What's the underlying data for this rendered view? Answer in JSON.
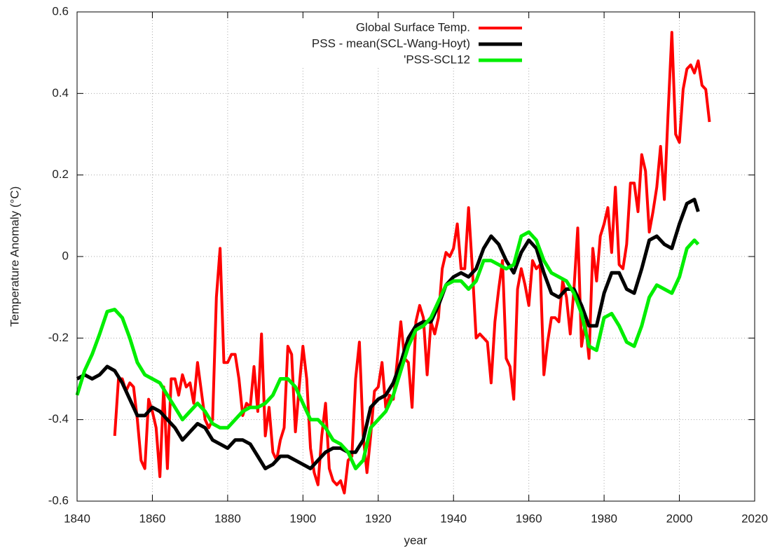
{
  "chart_data": {
    "type": "line",
    "x_label": "year",
    "y_label": "Temperature Anomaly (°C)",
    "xlim": [
      1840,
      2020
    ],
    "xticks": [
      1840,
      1860,
      1880,
      1900,
      1920,
      1940,
      1960,
      1980,
      2000,
      2020
    ],
    "ylim": [
      -0.6,
      0.6
    ],
    "yticks": [
      -0.6,
      -0.4,
      -0.2,
      0,
      0.2,
      0.4,
      0.6
    ],
    "grid": true,
    "legend": "top-right",
    "series": [
      {
        "name": "Global Surface Temp.",
        "color": "#ff0000",
        "width": 4,
        "x": [
          1850,
          1851,
          1852,
          1853,
          1854,
          1855,
          1856,
          1857,
          1858,
          1859,
          1860,
          1861,
          1862,
          1863,
          1864,
          1865,
          1866,
          1867,
          1868,
          1869,
          1870,
          1871,
          1872,
          1873,
          1874,
          1875,
          1876,
          1877,
          1878,
          1879,
          1880,
          1881,
          1882,
          1883,
          1884,
          1885,
          1886,
          1887,
          1888,
          1889,
          1890,
          1891,
          1892,
          1893,
          1894,
          1895,
          1896,
          1897,
          1898,
          1899,
          1900,
          1901,
          1902,
          1903,
          1904,
          1905,
          1906,
          1907,
          1908,
          1909,
          1910,
          1911,
          1912,
          1913,
          1914,
          1915,
          1916,
          1917,
          1918,
          1919,
          1920,
          1921,
          1922,
          1923,
          1924,
          1925,
          1926,
          1927,
          1928,
          1929,
          1930,
          1931,
          1932,
          1933,
          1934,
          1935,
          1936,
          1937,
          1938,
          1939,
          1940,
          1941,
          1942,
          1943,
          1944,
          1945,
          1946,
          1947,
          1948,
          1949,
          1950,
          1951,
          1952,
          1953,
          1954,
          1955,
          1956,
          1957,
          1958,
          1959,
          1960,
          1961,
          1962,
          1963,
          1964,
          1965,
          1966,
          1967,
          1968,
          1969,
          1970,
          1971,
          1972,
          1973,
          1974,
          1975,
          1976,
          1977,
          1978,
          1979,
          1980,
          1981,
          1982,
          1983,
          1984,
          1985,
          1986,
          1987,
          1988,
          1989,
          1990,
          1991,
          1992,
          1993,
          1994,
          1995,
          1996,
          1997,
          1998,
          1999,
          2000,
          2001,
          2002,
          2003,
          2004,
          2005,
          2006,
          2007,
          2008
        ],
        "values": [
          -0.44,
          -0.3,
          -0.3,
          -0.33,
          -0.31,
          -0.32,
          -0.4,
          -0.5,
          -0.52,
          -0.35,
          -0.38,
          -0.42,
          -0.54,
          -0.32,
          -0.52,
          -0.3,
          -0.3,
          -0.34,
          -0.29,
          -0.32,
          -0.31,
          -0.36,
          -0.26,
          -0.33,
          -0.4,
          -0.42,
          -0.4,
          -0.1,
          0.02,
          -0.26,
          -0.26,
          -0.24,
          -0.24,
          -0.3,
          -0.39,
          -0.36,
          -0.37,
          -0.27,
          -0.38,
          -0.19,
          -0.44,
          -0.37,
          -0.48,
          -0.5,
          -0.45,
          -0.42,
          -0.22,
          -0.24,
          -0.43,
          -0.32,
          -0.22,
          -0.3,
          -0.47,
          -0.53,
          -0.56,
          -0.44,
          -0.36,
          -0.52,
          -0.55,
          -0.56,
          -0.55,
          -0.58,
          -0.5,
          -0.49,
          -0.3,
          -0.21,
          -0.44,
          -0.53,
          -0.44,
          -0.33,
          -0.32,
          -0.26,
          -0.37,
          -0.34,
          -0.35,
          -0.26,
          -0.16,
          -0.25,
          -0.26,
          -0.37,
          -0.16,
          -0.12,
          -0.15,
          -0.29,
          -0.16,
          -0.19,
          -0.15,
          -0.03,
          0.01,
          0.0,
          0.02,
          0.08,
          -0.03,
          -0.03,
          0.12,
          -0.03,
          -0.2,
          -0.19,
          -0.2,
          -0.21,
          -0.31,
          -0.16,
          -0.08,
          -0.01,
          -0.25,
          -0.27,
          -0.35,
          -0.08,
          -0.03,
          -0.07,
          -0.12,
          -0.01,
          -0.03,
          -0.02,
          -0.29,
          -0.21,
          -0.15,
          -0.15,
          -0.16,
          -0.06,
          -0.1,
          -0.19,
          -0.08,
          0.07,
          -0.22,
          -0.16,
          -0.25,
          0.02,
          -0.06,
          0.05,
          0.08,
          0.12,
          0.01,
          0.17,
          -0.02,
          -0.03,
          0.03,
          0.18,
          0.18,
          0.11,
          0.25,
          0.21,
          0.06,
          0.11,
          0.17,
          0.27,
          0.14,
          0.35,
          0.55,
          0.3,
          0.28,
          0.41,
          0.46,
          0.47,
          0.45,
          0.48,
          0.42,
          0.41,
          0.33
        ]
      },
      {
        "name": "PSS - mean(SCL-Wang-Hoyt)",
        "color": "#000000",
        "width": 5,
        "x": [
          1840,
          1842,
          1844,
          1846,
          1848,
          1850,
          1852,
          1854,
          1856,
          1858,
          1860,
          1862,
          1864,
          1866,
          1868,
          1870,
          1872,
          1874,
          1876,
          1878,
          1880,
          1882,
          1884,
          1886,
          1888,
          1890,
          1892,
          1894,
          1896,
          1898,
          1900,
          1902,
          1904,
          1906,
          1908,
          1910,
          1912,
          1914,
          1916,
          1918,
          1920,
          1922,
          1924,
          1926,
          1928,
          1930,
          1932,
          1934,
          1936,
          1938,
          1940,
          1942,
          1944,
          1946,
          1948,
          1950,
          1952,
          1954,
          1956,
          1958,
          1960,
          1962,
          1964,
          1966,
          1968,
          1970,
          1972,
          1974,
          1976,
          1978,
          1980,
          1982,
          1984,
          1986,
          1988,
          1990,
          1992,
          1994,
          1996,
          1998,
          2000,
          2002,
          2004,
          2005
        ],
        "values": [
          -0.3,
          -0.29,
          -0.3,
          -0.29,
          -0.27,
          -0.28,
          -0.31,
          -0.35,
          -0.39,
          -0.39,
          -0.37,
          -0.38,
          -0.4,
          -0.42,
          -0.45,
          -0.43,
          -0.41,
          -0.42,
          -0.45,
          -0.46,
          -0.47,
          -0.45,
          -0.45,
          -0.46,
          -0.49,
          -0.52,
          -0.51,
          -0.49,
          -0.49,
          -0.5,
          -0.51,
          -0.52,
          -0.5,
          -0.48,
          -0.47,
          -0.47,
          -0.48,
          -0.48,
          -0.45,
          -0.37,
          -0.35,
          -0.34,
          -0.31,
          -0.26,
          -0.2,
          -0.17,
          -0.16,
          -0.16,
          -0.12,
          -0.07,
          -0.05,
          -0.04,
          -0.05,
          -0.03,
          0.02,
          0.05,
          0.03,
          -0.01,
          -0.04,
          0.01,
          0.04,
          0.02,
          -0.04,
          -0.09,
          -0.1,
          -0.08,
          -0.08,
          -0.12,
          -0.17,
          -0.17,
          -0.09,
          -0.04,
          -0.04,
          -0.08,
          -0.09,
          -0.03,
          0.04,
          0.05,
          0.03,
          0.02,
          0.08,
          0.13,
          0.14,
          0.11
        ]
      },
      {
        "name": "'PSS-SCL12",
        "color": "#00ee00",
        "width": 5,
        "x": [
          1840,
          1842,
          1844,
          1846,
          1848,
          1850,
          1852,
          1854,
          1856,
          1858,
          1860,
          1862,
          1864,
          1866,
          1868,
          1870,
          1872,
          1874,
          1876,
          1878,
          1880,
          1882,
          1884,
          1886,
          1888,
          1890,
          1892,
          1894,
          1896,
          1898,
          1900,
          1902,
          1904,
          1906,
          1908,
          1910,
          1912,
          1914,
          1916,
          1918,
          1920,
          1922,
          1924,
          1926,
          1928,
          1930,
          1932,
          1934,
          1936,
          1938,
          1940,
          1942,
          1944,
          1946,
          1948,
          1950,
          1952,
          1954,
          1956,
          1958,
          1960,
          1962,
          1964,
          1966,
          1968,
          1970,
          1972,
          1974,
          1976,
          1978,
          1980,
          1982,
          1984,
          1986,
          1988,
          1990,
          1992,
          1994,
          1996,
          1998,
          2000,
          2002,
          2004,
          2005
        ],
        "values": [
          -0.34,
          -0.28,
          -0.24,
          -0.19,
          -0.135,
          -0.13,
          -0.15,
          -0.2,
          -0.26,
          -0.29,
          -0.3,
          -0.31,
          -0.34,
          -0.37,
          -0.4,
          -0.38,
          -0.36,
          -0.38,
          -0.41,
          -0.42,
          -0.42,
          -0.4,
          -0.38,
          -0.37,
          -0.37,
          -0.36,
          -0.34,
          -0.3,
          -0.3,
          -0.32,
          -0.36,
          -0.4,
          -0.4,
          -0.42,
          -0.45,
          -0.46,
          -0.48,
          -0.52,
          -0.5,
          -0.42,
          -0.4,
          -0.38,
          -0.34,
          -0.28,
          -0.22,
          -0.18,
          -0.17,
          -0.15,
          -0.11,
          -0.07,
          -0.06,
          -0.06,
          -0.08,
          -0.06,
          -0.01,
          -0.01,
          -0.02,
          -0.03,
          -0.02,
          0.05,
          0.06,
          0.04,
          -0.01,
          -0.04,
          -0.05,
          -0.06,
          -0.09,
          -0.14,
          -0.22,
          -0.23,
          -0.15,
          -0.14,
          -0.17,
          -0.21,
          -0.22,
          -0.17,
          -0.1,
          -0.07,
          -0.08,
          -0.09,
          -0.05,
          0.02,
          0.04,
          0.03
        ]
      }
    ]
  }
}
